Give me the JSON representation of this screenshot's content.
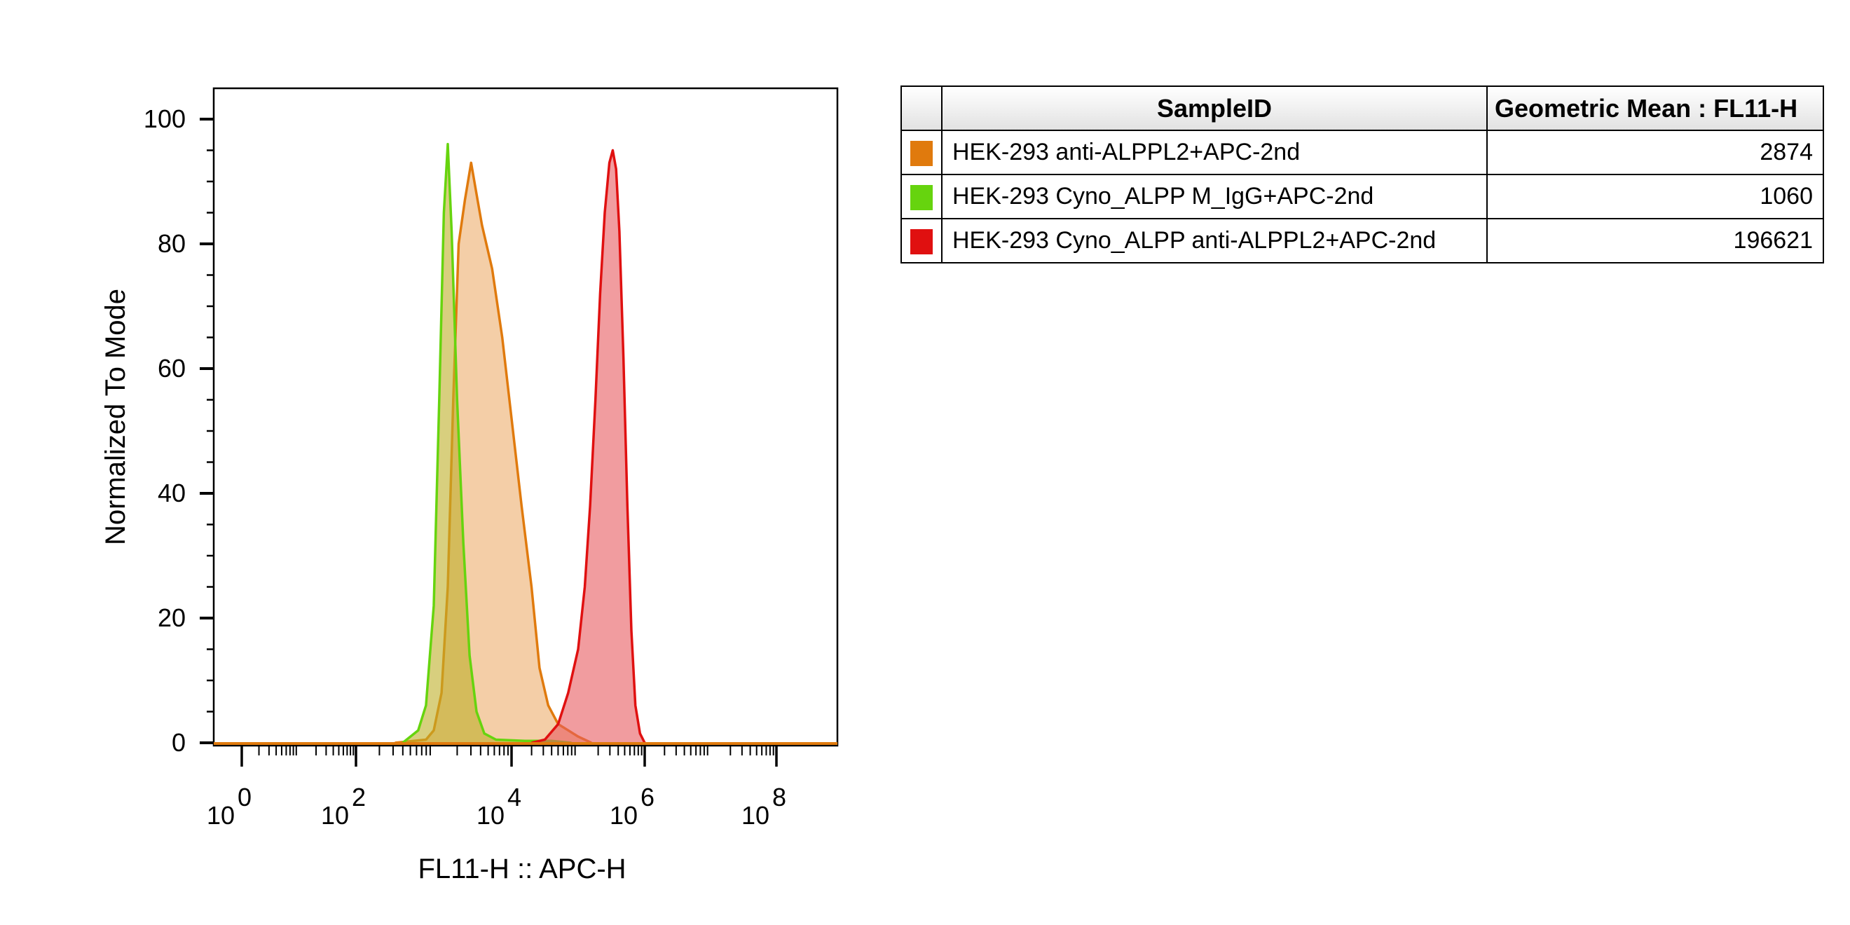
{
  "chart_data": {
    "type": "histogram",
    "xlabel": "FL11-H :: APC-H",
    "ylabel": "Normalized To Mode",
    "x_scale": "biexponential",
    "x_tick_labels": [
      {
        "base": "10",
        "exp": "0",
        "log10": 0
      },
      {
        "base": "10",
        "exp": "2",
        "log10": 2
      },
      {
        "base": "10",
        "exp": "4",
        "log10": 4
      },
      {
        "base": "10",
        "exp": "6",
        "log10": 6
      },
      {
        "base": "10",
        "exp": "8",
        "log10": 8
      }
    ],
    "y_ticks": [
      0,
      20,
      40,
      60,
      80,
      100
    ],
    "ylim": [
      0,
      100
    ],
    "legend_position": "right-table",
    "table_headers": [
      "SampleID",
      "Geometric Mean : FL11-H"
    ],
    "series": [
      {
        "name": "HEK-293 anti-ALPPL2+APC-2nd",
        "color": "#e07a0d",
        "fill": "rgba(235,165,95,0.55)",
        "geometric_mean": "2874",
        "points": [
          [
            2.5,
            0
          ],
          [
            2.9,
            0.5
          ],
          [
            3.0,
            2
          ],
          [
            3.1,
            8
          ],
          [
            3.18,
            25
          ],
          [
            3.25,
            55
          ],
          [
            3.32,
            80
          ],
          [
            3.4,
            87
          ],
          [
            3.48,
            93
          ],
          [
            3.55,
            88
          ],
          [
            3.62,
            83
          ],
          [
            3.75,
            76
          ],
          [
            3.88,
            65
          ],
          [
            4.0,
            52
          ],
          [
            4.15,
            38
          ],
          [
            4.3,
            25
          ],
          [
            4.42,
            12
          ],
          [
            4.55,
            6
          ],
          [
            4.7,
            3
          ],
          [
            4.85,
            2
          ],
          [
            5.0,
            1
          ],
          [
            5.2,
            0
          ]
        ]
      },
      {
        "name": "HEK-293 Cyno_ALPP M_IgG+APC-2nd",
        "color": "#66d40e",
        "fill": "rgba(190,175,40,0.6)",
        "geometric_mean": "1060",
        "points": [
          [
            2.6,
            0
          ],
          [
            2.8,
            2
          ],
          [
            2.9,
            6
          ],
          [
            3.0,
            22
          ],
          [
            3.07,
            55
          ],
          [
            3.13,
            85
          ],
          [
            3.18,
            96
          ],
          [
            3.23,
            82
          ],
          [
            3.3,
            55
          ],
          [
            3.38,
            32
          ],
          [
            3.46,
            14
          ],
          [
            3.55,
            5
          ],
          [
            3.65,
            1.5
          ],
          [
            3.8,
            0.5
          ],
          [
            4.2,
            0.3
          ],
          [
            4.6,
            0.3
          ],
          [
            4.9,
            0
          ]
        ]
      },
      {
        "name": "HEK-293 Cyno_ALPP anti-ALPPL2+APC-2nd",
        "color": "#e01010",
        "fill": "rgba(232,90,95,0.6)",
        "geometric_mean": "196621",
        "points": [
          [
            4.3,
            0
          ],
          [
            4.5,
            0.5
          ],
          [
            4.7,
            3
          ],
          [
            4.85,
            8
          ],
          [
            5.0,
            15
          ],
          [
            5.1,
            25
          ],
          [
            5.18,
            38
          ],
          [
            5.26,
            55
          ],
          [
            5.33,
            72
          ],
          [
            5.4,
            85
          ],
          [
            5.47,
            93
          ],
          [
            5.52,
            95
          ],
          [
            5.57,
            92
          ],
          [
            5.62,
            82
          ],
          [
            5.68,
            62
          ],
          [
            5.74,
            38
          ],
          [
            5.8,
            18
          ],
          [
            5.86,
            6
          ],
          [
            5.93,
            1.5
          ],
          [
            6.0,
            0
          ]
        ]
      }
    ]
  }
}
